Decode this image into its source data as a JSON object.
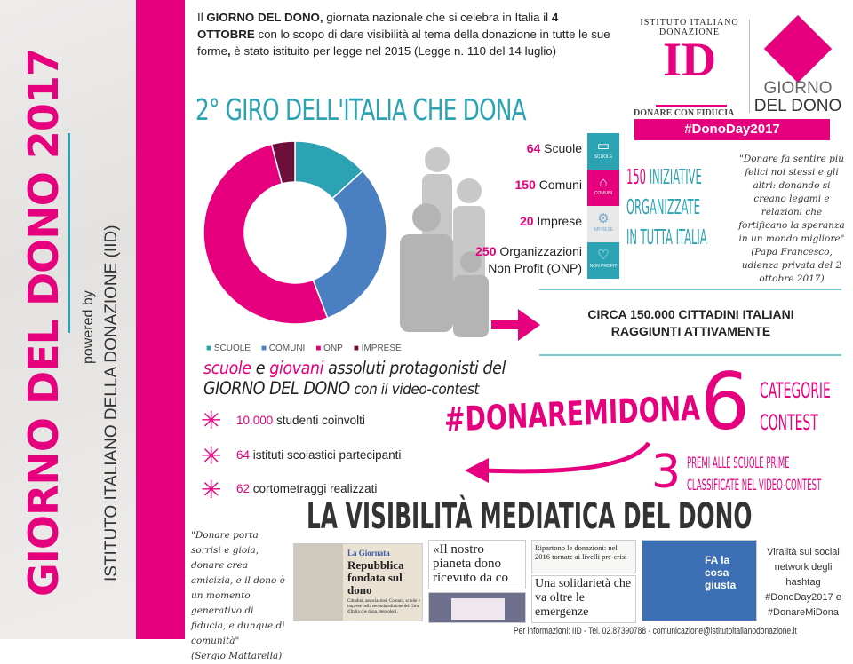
{
  "side": {
    "title": "GIORNO DEL DONO 2017",
    "powered": "powered by",
    "org": "ISTITUTO ITALIANO DELLA DONAZIONE (IID)"
  },
  "intro": {
    "p1": "Il ",
    "b1": "GIORNO DEL DONO,",
    "p2": " giornata nazionale che si celebra in Italia il ",
    "b2": "4 OTTOBRE",
    "p3": " con lo scopo di dare visibilità al tema della donazione in tutte le sue forme",
    "b3": ",",
    "p4": " è stato istituito per legge nel 2015 (Legge n. 110 del 14 luglio)"
  },
  "logo": {
    "arc": "ISTITUTO ITALIANO DONAZIONE",
    "mark": "ID",
    "tagline": "DONARE CON FIDUCIA",
    "gdd1": "GIORNO",
    "gdd2": "DEL DONO",
    "hashtag": "#DonoDay2017"
  },
  "heading": "2° GIRO DELL'ITALIA CHE DONA",
  "chart_data": {
    "type": "pie",
    "donut": true,
    "categories": [
      "SCUOLE",
      "COMUNI",
      "ONP",
      "IMPRESE"
    ],
    "values": [
      64,
      150,
      250,
      20
    ],
    "colors": [
      "#2ba3b3",
      "#4a7fc1",
      "#e6007e",
      "#6b0f3a"
    ],
    "legend": "bottom"
  },
  "stats": [
    {
      "n": "64",
      "label": " Scuole"
    },
    {
      "n": "150",
      "label": " Comuni"
    },
    {
      "n": "20",
      "label": " Imprese"
    },
    {
      "n": "250",
      "label": " Organizzazioni",
      "label2": "Non Profit (ONP)"
    }
  ],
  "icons": [
    {
      "name": "book-icon",
      "glyph": "📖",
      "cap": "SCUOLE",
      "color": "#2ba3b3"
    },
    {
      "name": "building-icon",
      "glyph": "🏛",
      "cap": "COMUNI",
      "color": "#e6007e"
    },
    {
      "name": "gears-icon",
      "glyph": "⚙",
      "cap": "IMPRESE",
      "color": "#e8e8e8"
    },
    {
      "name": "heart-icon",
      "glyph": "♡",
      "cap": "NON PROFIT",
      "color": "#2ba3b3"
    }
  ],
  "initiatives": {
    "n": "150",
    "l1": " INIZIATIVE",
    "l2": "ORGANIZZATE",
    "l3": "IN TUTTA ITALIA"
  },
  "quote_pope": {
    "text": "\"Donare fa sentire più felici noi stessi e gli altri: donando si creano legami e relazioni che fortificano la speranza in un mondo migliore\"",
    "source": "(Papa Francesco, udienza privata del 2 ottobre 2017)"
  },
  "citizens": {
    "l1": "CIRCA 150.000 CITTADINI ITALIANI",
    "l2": "RAGGIUNTI ATTIVAMENTE"
  },
  "schools": {
    "w1": "scuole",
    "w2": " e ",
    "w3": "giovani",
    "w4": " assoluti protagonisti del",
    "l2a": "GIORNO DEL DONO",
    "l2b": " con il video-contest"
  },
  "items": [
    {
      "n": "10.000",
      "t": " studenti coinvolti"
    },
    {
      "n": "64",
      "t": " istituti scolastici partecipanti"
    },
    {
      "n": "62",
      "t": " cortometraggi realizzati"
    }
  ],
  "contest": {
    "hashtag": "#DONAREMIDONA",
    "six": "6",
    "cat1": "CATEGORIE",
    "cat2": "CONTEST",
    "three": "3",
    "pr1": "PREMI ALLE SCUOLE PRIME",
    "pr2": "CLASSIFICATE NEL VIDEO-CONTEST"
  },
  "media": {
    "title": "LA VISIBILITÀ MEDIATICA DEL DONO",
    "quote": "\"Donare porta sorrisi e gioia, donare crea amicizia, e il dono è un momento generativo di fiducia, e dunque di comunità\"",
    "quote_src": "(Sergio Mattarella)",
    "clip1a": "La Giornata",
    "clip1b": "Repubblica fondata sul dono",
    "clip1c": "Cittadini, associazioni, Comuni, scuole e imprese nella seconda edizione del Giro d'Italia che dona, mercoledì.",
    "clip2": "«Il nostro pianeta dono ricevuto da co",
    "clip3": "Ripartono le donazioni: nel 2016 tornate ai livelli pre-crisi",
    "clip4": "Una solidarietà che va oltre le emergenze",
    "clip5": "FA la cosa giusta",
    "viral": "Viralità sui social network degli hashtag #DonoDay2017 e #DonareMiDona"
  },
  "footer": "Per informazioni: IID - Tel. 02.87390788 - comunicazione@istitutoitalianodonazione.it"
}
